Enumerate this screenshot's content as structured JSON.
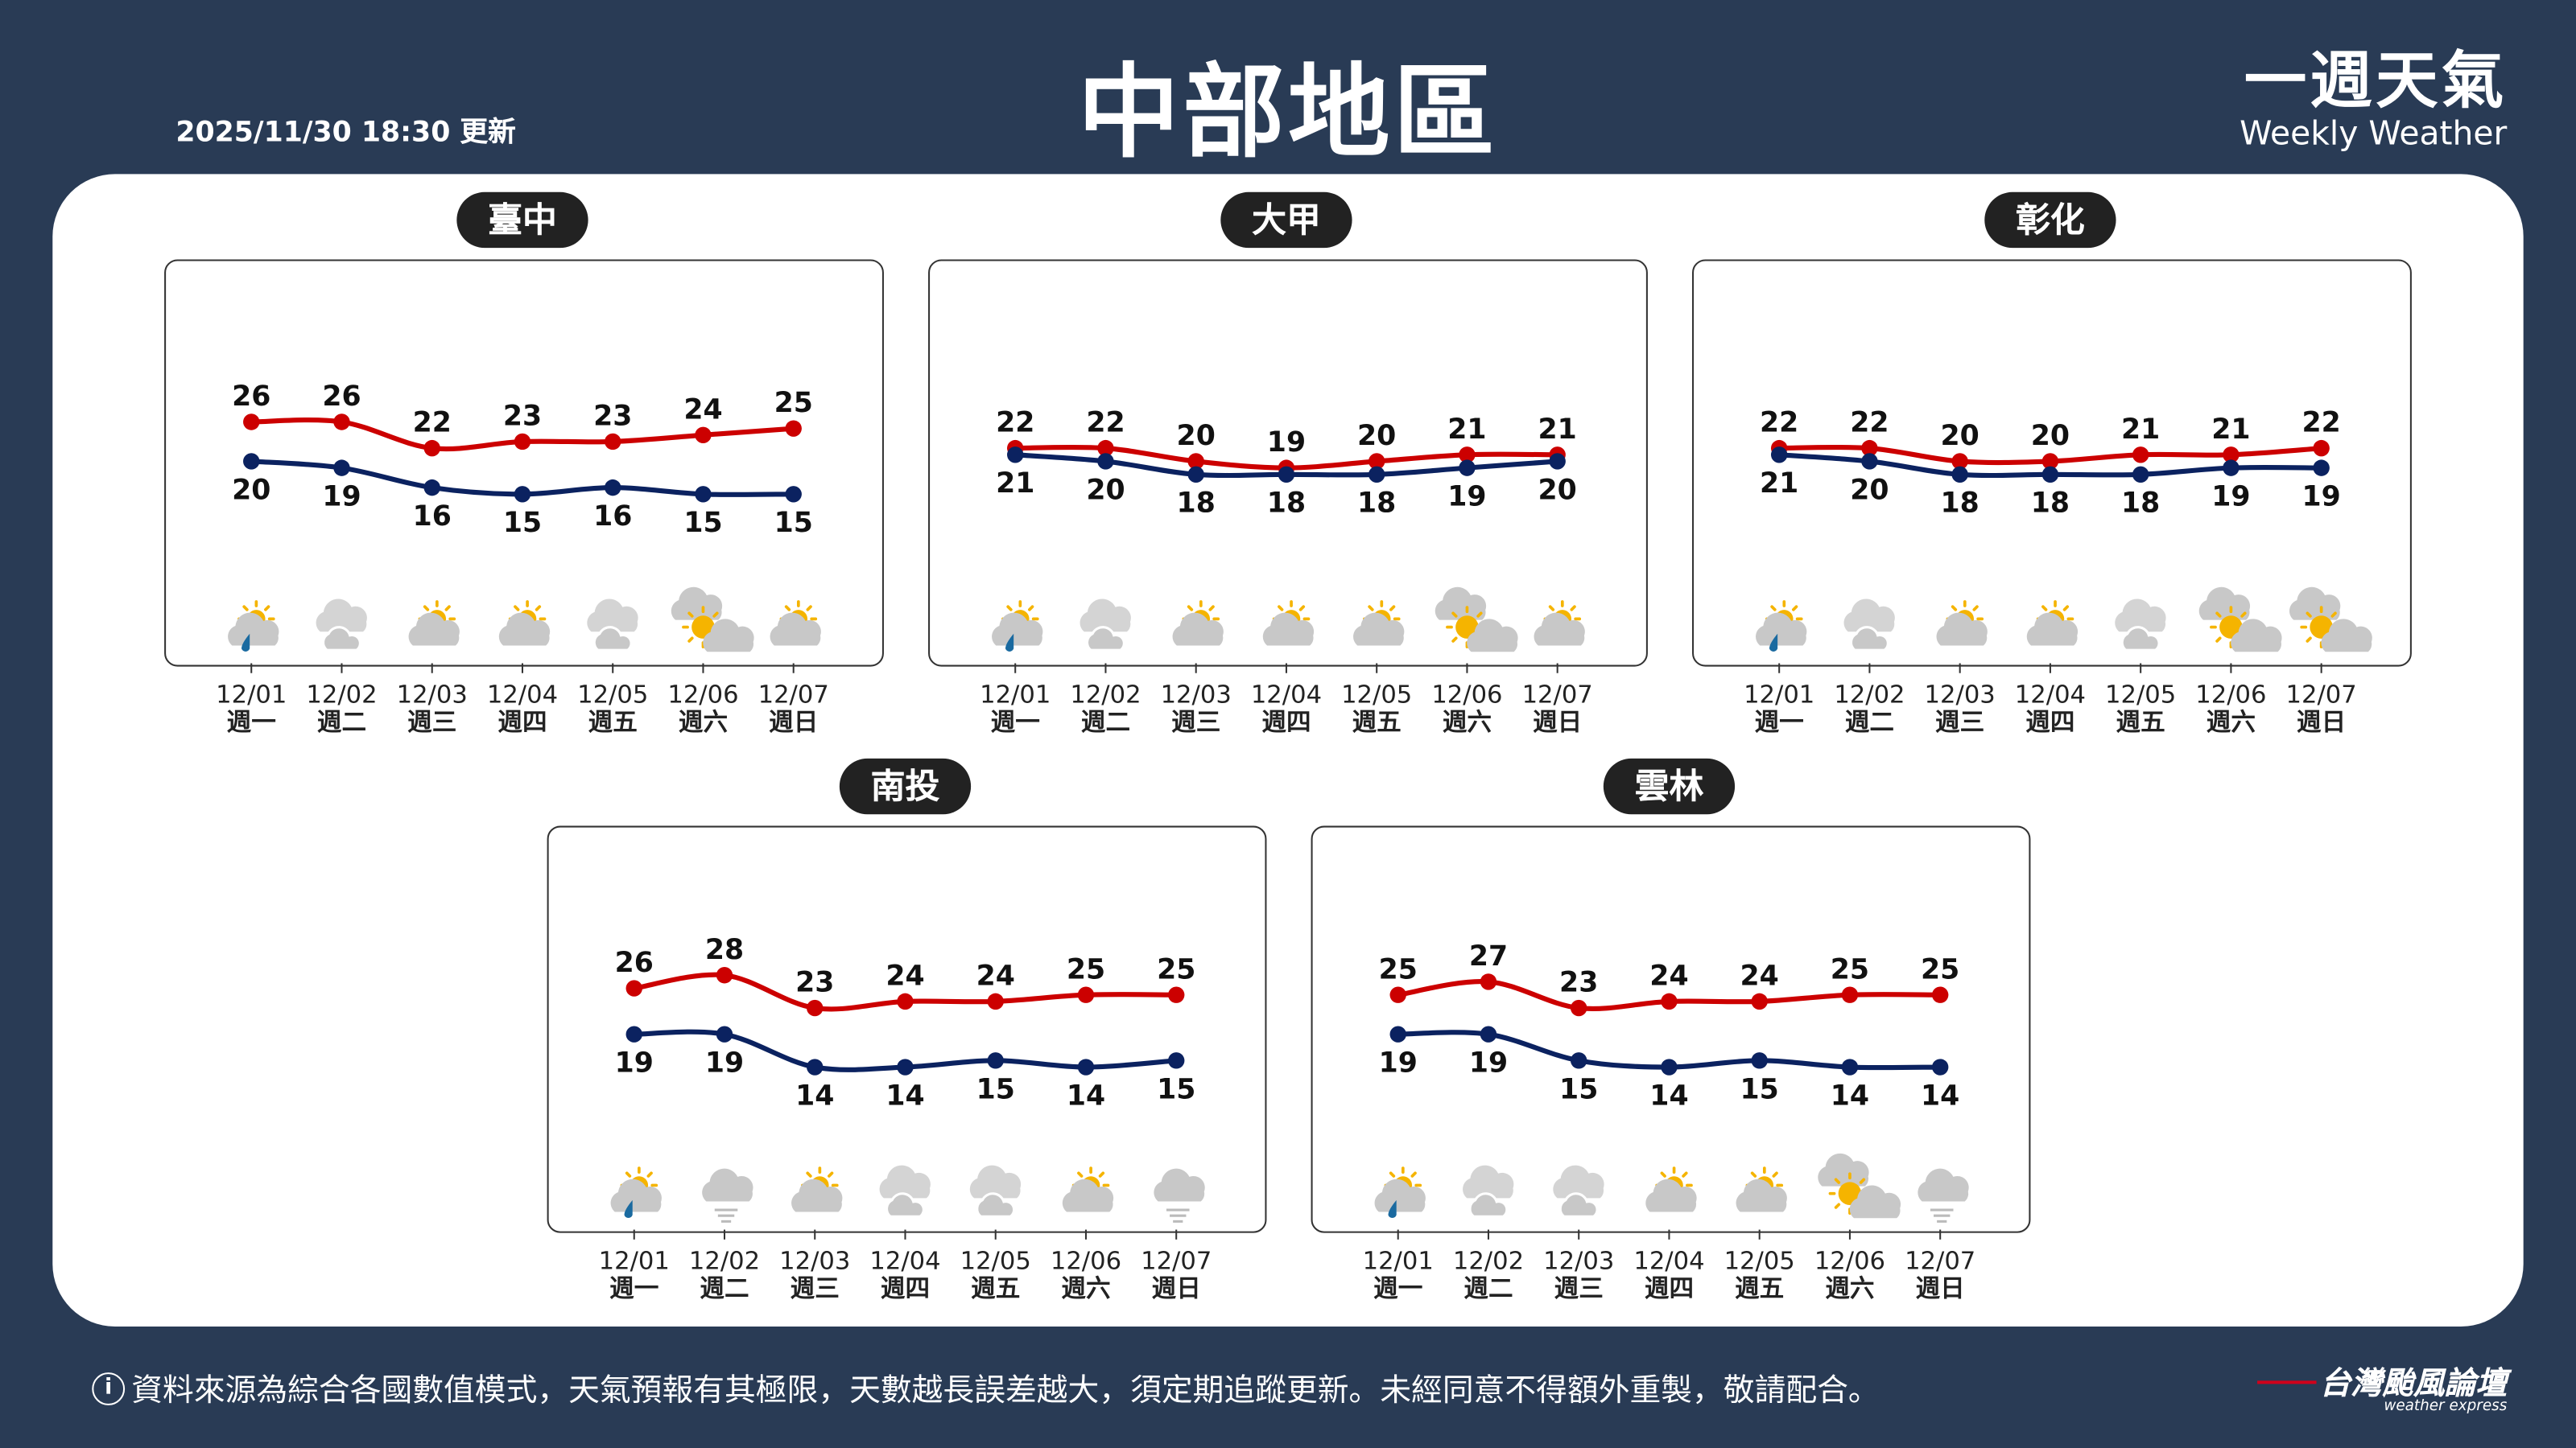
{
  "header": {
    "updated": "2025/11/30 18:30 更新",
    "title": "中部地區",
    "brand_zh": "一週天氣",
    "brand_en": "Weekly Weather"
  },
  "colors": {
    "background": "#293b55",
    "high": "#cc0000",
    "low": "#0b2260",
    "sun": "#f5b400",
    "cloud": "#c8c8c8",
    "rain": "#1a6aa0"
  },
  "dates": [
    "12/01",
    "12/02",
    "12/03",
    "12/04",
    "12/05",
    "12/06",
    "12/07"
  ],
  "weekdays": [
    "週一",
    "週二",
    "週三",
    "週四",
    "週五",
    "週六",
    "週日"
  ],
  "chart_data": [
    {
      "type": "line",
      "name": "臺中",
      "series": [
        {
          "name": "high",
          "values": [
            26,
            26,
            22,
            23,
            23,
            24,
            25
          ]
        },
        {
          "name": "low",
          "values": [
            20,
            19,
            16,
            15,
            16,
            15,
            15
          ]
        }
      ],
      "icons": [
        "rain-partly-sunny",
        "cloudy",
        "partly-cloudy",
        "partly-cloudy",
        "cloudy",
        "mostly-sunny",
        "partly-cloudy"
      ]
    },
    {
      "type": "line",
      "name": "大甲",
      "series": [
        {
          "name": "high",
          "values": [
            22,
            22,
            20,
            19,
            20,
            21,
            21
          ]
        },
        {
          "name": "low",
          "values": [
            21,
            20,
            18,
            18,
            18,
            19,
            20
          ]
        }
      ],
      "icons": [
        "rain-partly-sunny",
        "cloudy",
        "partly-cloudy",
        "partly-cloudy",
        "partly-cloudy",
        "mostly-sunny",
        "partly-cloudy"
      ]
    },
    {
      "type": "line",
      "name": "彰化",
      "series": [
        {
          "name": "high",
          "values": [
            22,
            22,
            20,
            20,
            21,
            21,
            22
          ]
        },
        {
          "name": "low",
          "values": [
            21,
            20,
            18,
            18,
            18,
            19,
            19
          ]
        }
      ],
      "icons": [
        "rain-partly-sunny",
        "cloudy",
        "partly-cloudy",
        "partly-cloudy",
        "cloudy",
        "mostly-sunny",
        "mostly-sunny"
      ]
    },
    {
      "type": "line",
      "name": "南投",
      "series": [
        {
          "name": "high",
          "values": [
            26,
            28,
            23,
            24,
            24,
            25,
            25
          ]
        },
        {
          "name": "low",
          "values": [
            19,
            19,
            14,
            14,
            15,
            14,
            15
          ]
        }
      ],
      "icons": [
        "rain-partly-sunny",
        "fog-cloudy",
        "partly-cloudy",
        "cloudy",
        "cloudy",
        "partly-cloudy",
        "fog-cloudy"
      ]
    },
    {
      "type": "line",
      "name": "雲林",
      "series": [
        {
          "name": "high",
          "values": [
            25,
            27,
            23,
            24,
            24,
            25,
            25
          ]
        },
        {
          "name": "low",
          "values": [
            19,
            19,
            15,
            14,
            15,
            14,
            14
          ]
        }
      ],
      "icons": [
        "rain-partly-sunny",
        "cloudy",
        "cloudy",
        "partly-cloudy",
        "partly-cloudy",
        "mostly-sunny",
        "fog-cloudy"
      ]
    }
  ],
  "footer": {
    "note": "資料來源為綜合各國數值模式，天氣預報有其極限，天數越長誤差越大，須定期追蹤更新。未經同意不得額外重製，敬請配合。",
    "info_icon": "i",
    "logo_zh": "台灣颱風論壇",
    "logo_en": "weather express"
  }
}
